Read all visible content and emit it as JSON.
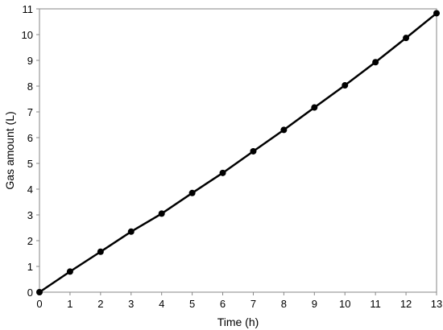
{
  "chart_data": {
    "type": "line",
    "title": "",
    "xlabel": "Time (h)",
    "ylabel": "Gas amount (L)",
    "xlim": [
      0,
      13
    ],
    "ylim": [
      0,
      11
    ],
    "xticks": [
      0,
      1,
      2,
      3,
      4,
      5,
      6,
      7,
      8,
      9,
      10,
      11,
      12,
      13
    ],
    "yticks": [
      0,
      1,
      2,
      3,
      4,
      5,
      6,
      7,
      8,
      9,
      10,
      11
    ],
    "grid": false,
    "legend": "none",
    "series": [
      {
        "color": "#000000",
        "marker": "circle",
        "x": [
          0,
          1,
          2,
          3,
          4,
          5,
          6,
          7,
          8,
          9,
          10,
          11,
          12,
          13
        ],
        "y": [
          0,
          0.8,
          1.57,
          2.35,
          3.05,
          3.85,
          4.63,
          5.47,
          6.3,
          7.17,
          8.03,
          8.93,
          9.87,
          10.83
        ]
      }
    ]
  }
}
